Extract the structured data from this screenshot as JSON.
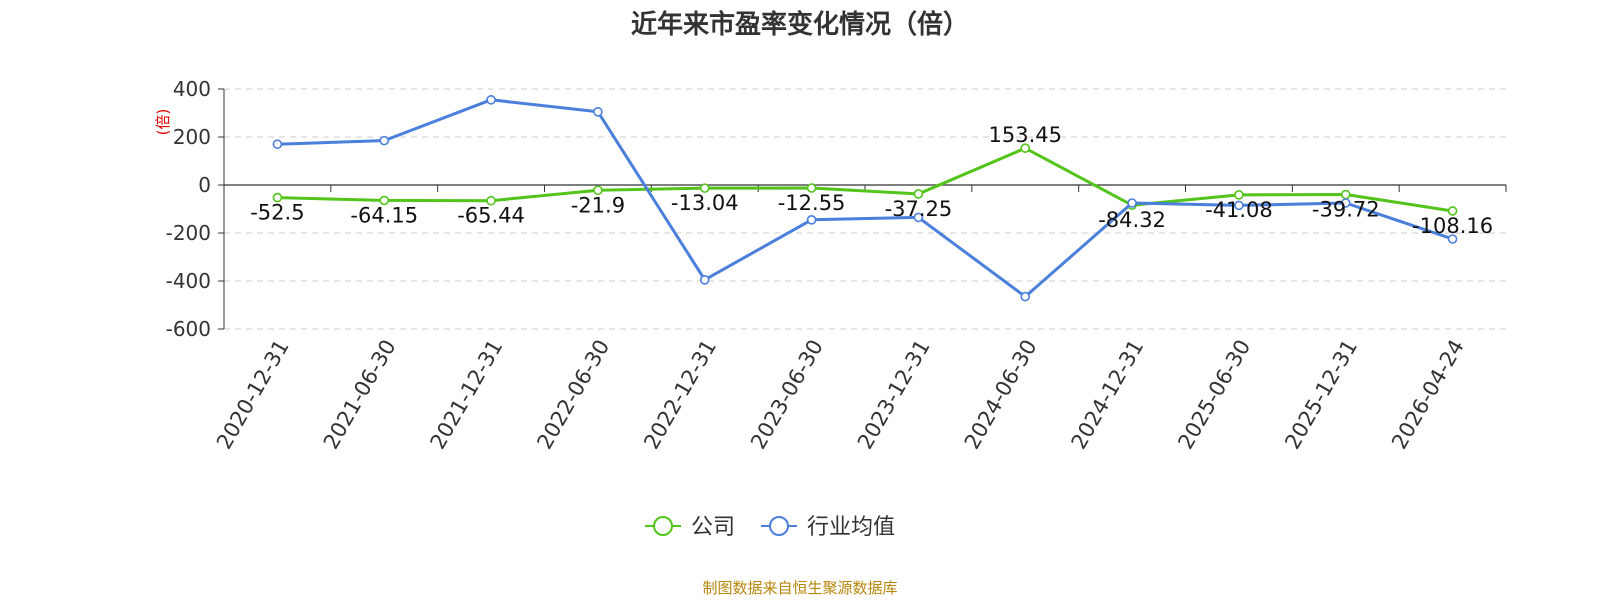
{
  "chart_data": {
    "type": "line",
    "title": "近年来市盈率变化情况（倍）",
    "ylabel": "(倍)",
    "ylim": [
      -600,
      400
    ],
    "yticks": [
      400,
      200,
      0,
      -200,
      -400,
      -600
    ],
    "categories": [
      "2020-12-31",
      "2021-06-30",
      "2021-12-31",
      "2022-06-30",
      "2022-12-31",
      "2023-06-30",
      "2023-12-31",
      "2024-06-30",
      "2024-12-31",
      "2025-06-30",
      "2025-12-31",
      "2026-04-24"
    ],
    "series": [
      {
        "name": "公司",
        "color": "#52c41a",
        "values": [
          -52.5,
          -64.15,
          -65.44,
          -21.9,
          -13.04,
          -12.55,
          -37.25,
          153.45,
          -84.32,
          -41.08,
          -39.72,
          -108.16
        ],
        "data_labels": [
          "-52.5",
          "-64.15",
          "-65.44",
          "-21.9",
          "-13.04",
          "-12.55",
          "-37.25",
          "153.45",
          "-84.32",
          "-41.08",
          "-39.72",
          "-108.16"
        ]
      },
      {
        "name": "行业均值",
        "color": "#4a7fdc",
        "values": [
          170,
          185,
          355,
          305,
          -395,
          -145,
          -135,
          -465,
          -75,
          -85,
          -75,
          -225
        ]
      }
    ],
    "grid": true,
    "legend_position": "bottom-center"
  },
  "source_note": "制图数据来自恒生聚源数据库"
}
